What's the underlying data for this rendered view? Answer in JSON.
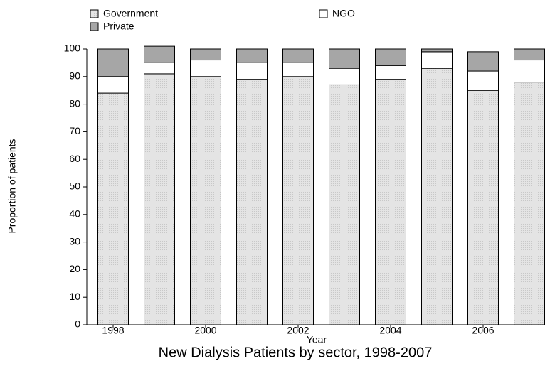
{
  "chart_data": {
    "type": "bar",
    "stacked": true,
    "title": "New Dialysis Patients by sector, 1998-2007",
    "x_label": "Year",
    "y_label": "Proportion of patients",
    "categories": [
      "1998",
      null,
      "2000",
      null,
      "2002",
      null,
      "2004",
      null,
      "2006",
      null
    ],
    "series": [
      {
        "name": "Government",
        "color": "#e2e2e2",
        "values": [
          84,
          91,
          90,
          89,
          90,
          87,
          89,
          93,
          85,
          88
        ]
      },
      {
        "name": "NGO",
        "color": "#ffffff",
        "values": [
          6,
          4,
          6,
          6,
          5,
          6,
          5,
          6,
          7,
          8
        ]
      },
      {
        "name": "Private",
        "color": "#a6a6a6",
        "values": [
          10,
          6,
          4,
          5,
          5,
          7,
          6,
          1,
          7,
          4
        ]
      }
    ],
    "ylim": [
      0,
      100
    ],
    "yticks": [
      0,
      10,
      20,
      30,
      40,
      50,
      60,
      70,
      80,
      90,
      100
    ]
  }
}
